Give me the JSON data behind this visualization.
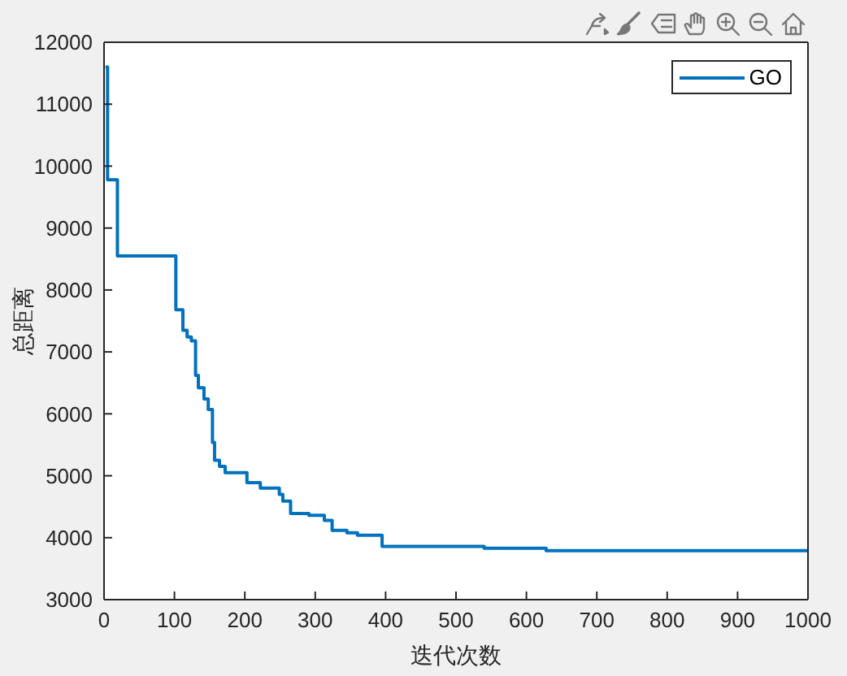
{
  "chart_data": {
    "type": "step",
    "xlabel": "迭代次数",
    "ylabel": "总距离",
    "x": [
      2,
      5,
      19,
      102,
      112,
      118,
      124,
      130,
      134,
      142,
      148,
      154,
      157,
      164,
      172,
      203,
      222,
      249,
      254,
      265,
      291,
      313,
      324,
      345,
      360,
      395,
      540,
      628,
      1000
    ],
    "series": [
      {
        "name": "GO",
        "color": "#0072bd",
        "values": [
          11600,
          9780,
          8550,
          7680,
          7350,
          7240,
          7180,
          6620,
          6420,
          6240,
          6070,
          5540,
          5250,
          5150,
          5050,
          4890,
          4800,
          4700,
          4590,
          4390,
          4360,
          4280,
          4120,
          4080,
          4040,
          3860,
          3830,
          3790,
          3790
        ]
      }
    ],
    "xlim": [
      0,
      1000
    ],
    "xticks": [
      0,
      100,
      200,
      300,
      400,
      500,
      600,
      700,
      800,
      900,
      1000
    ],
    "ylim": [
      3000,
      12000
    ],
    "yticks": [
      3000,
      4000,
      5000,
      6000,
      7000,
      8000,
      9000,
      10000,
      11000,
      12000
    ],
    "legend": "top right",
    "marker": "none",
    "line_style": "solid"
  }
}
